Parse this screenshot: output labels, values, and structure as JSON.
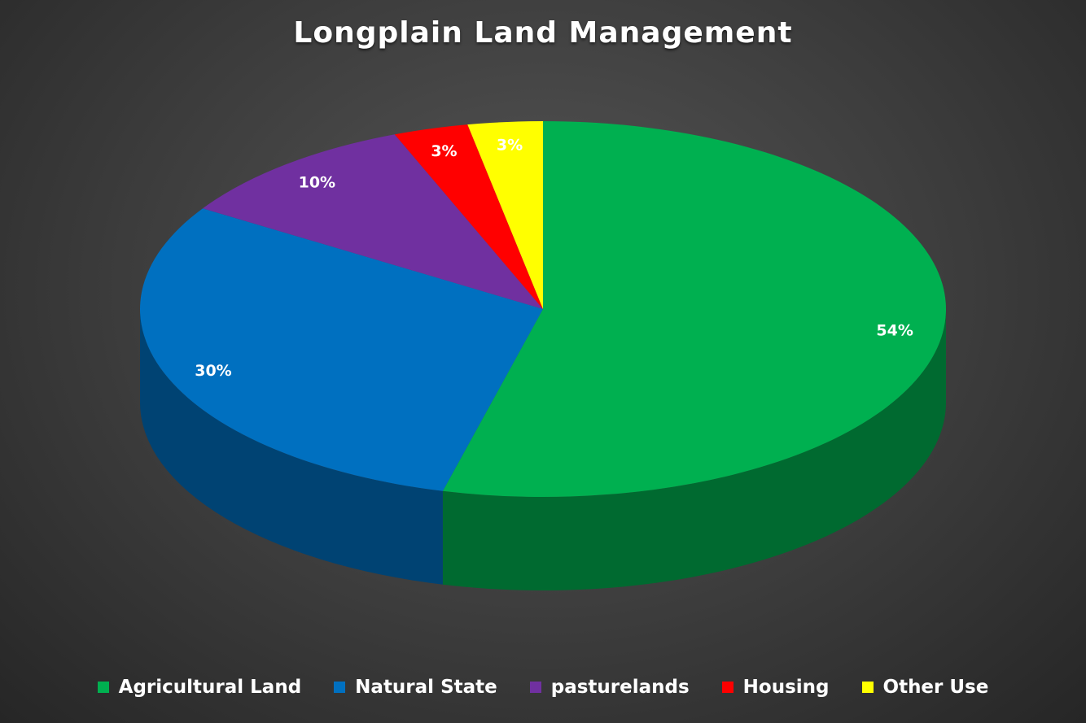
{
  "chart_data": {
    "type": "pie",
    "title": "Longplain Land Management",
    "categories": [
      "Agricultural Land",
      "Natural State",
      "pasturelands",
      "Housing",
      "Other Use"
    ],
    "values": [
      54,
      30,
      10,
      3,
      3
    ],
    "data_labels": [
      "54%",
      "30%",
      "10%",
      "3%",
      "3%"
    ],
    "colors": [
      "#00b050",
      "#0070c0",
      "#7030a0",
      "#ff0000",
      "#ffff00"
    ],
    "legend_position": "bottom",
    "style": "3d"
  }
}
